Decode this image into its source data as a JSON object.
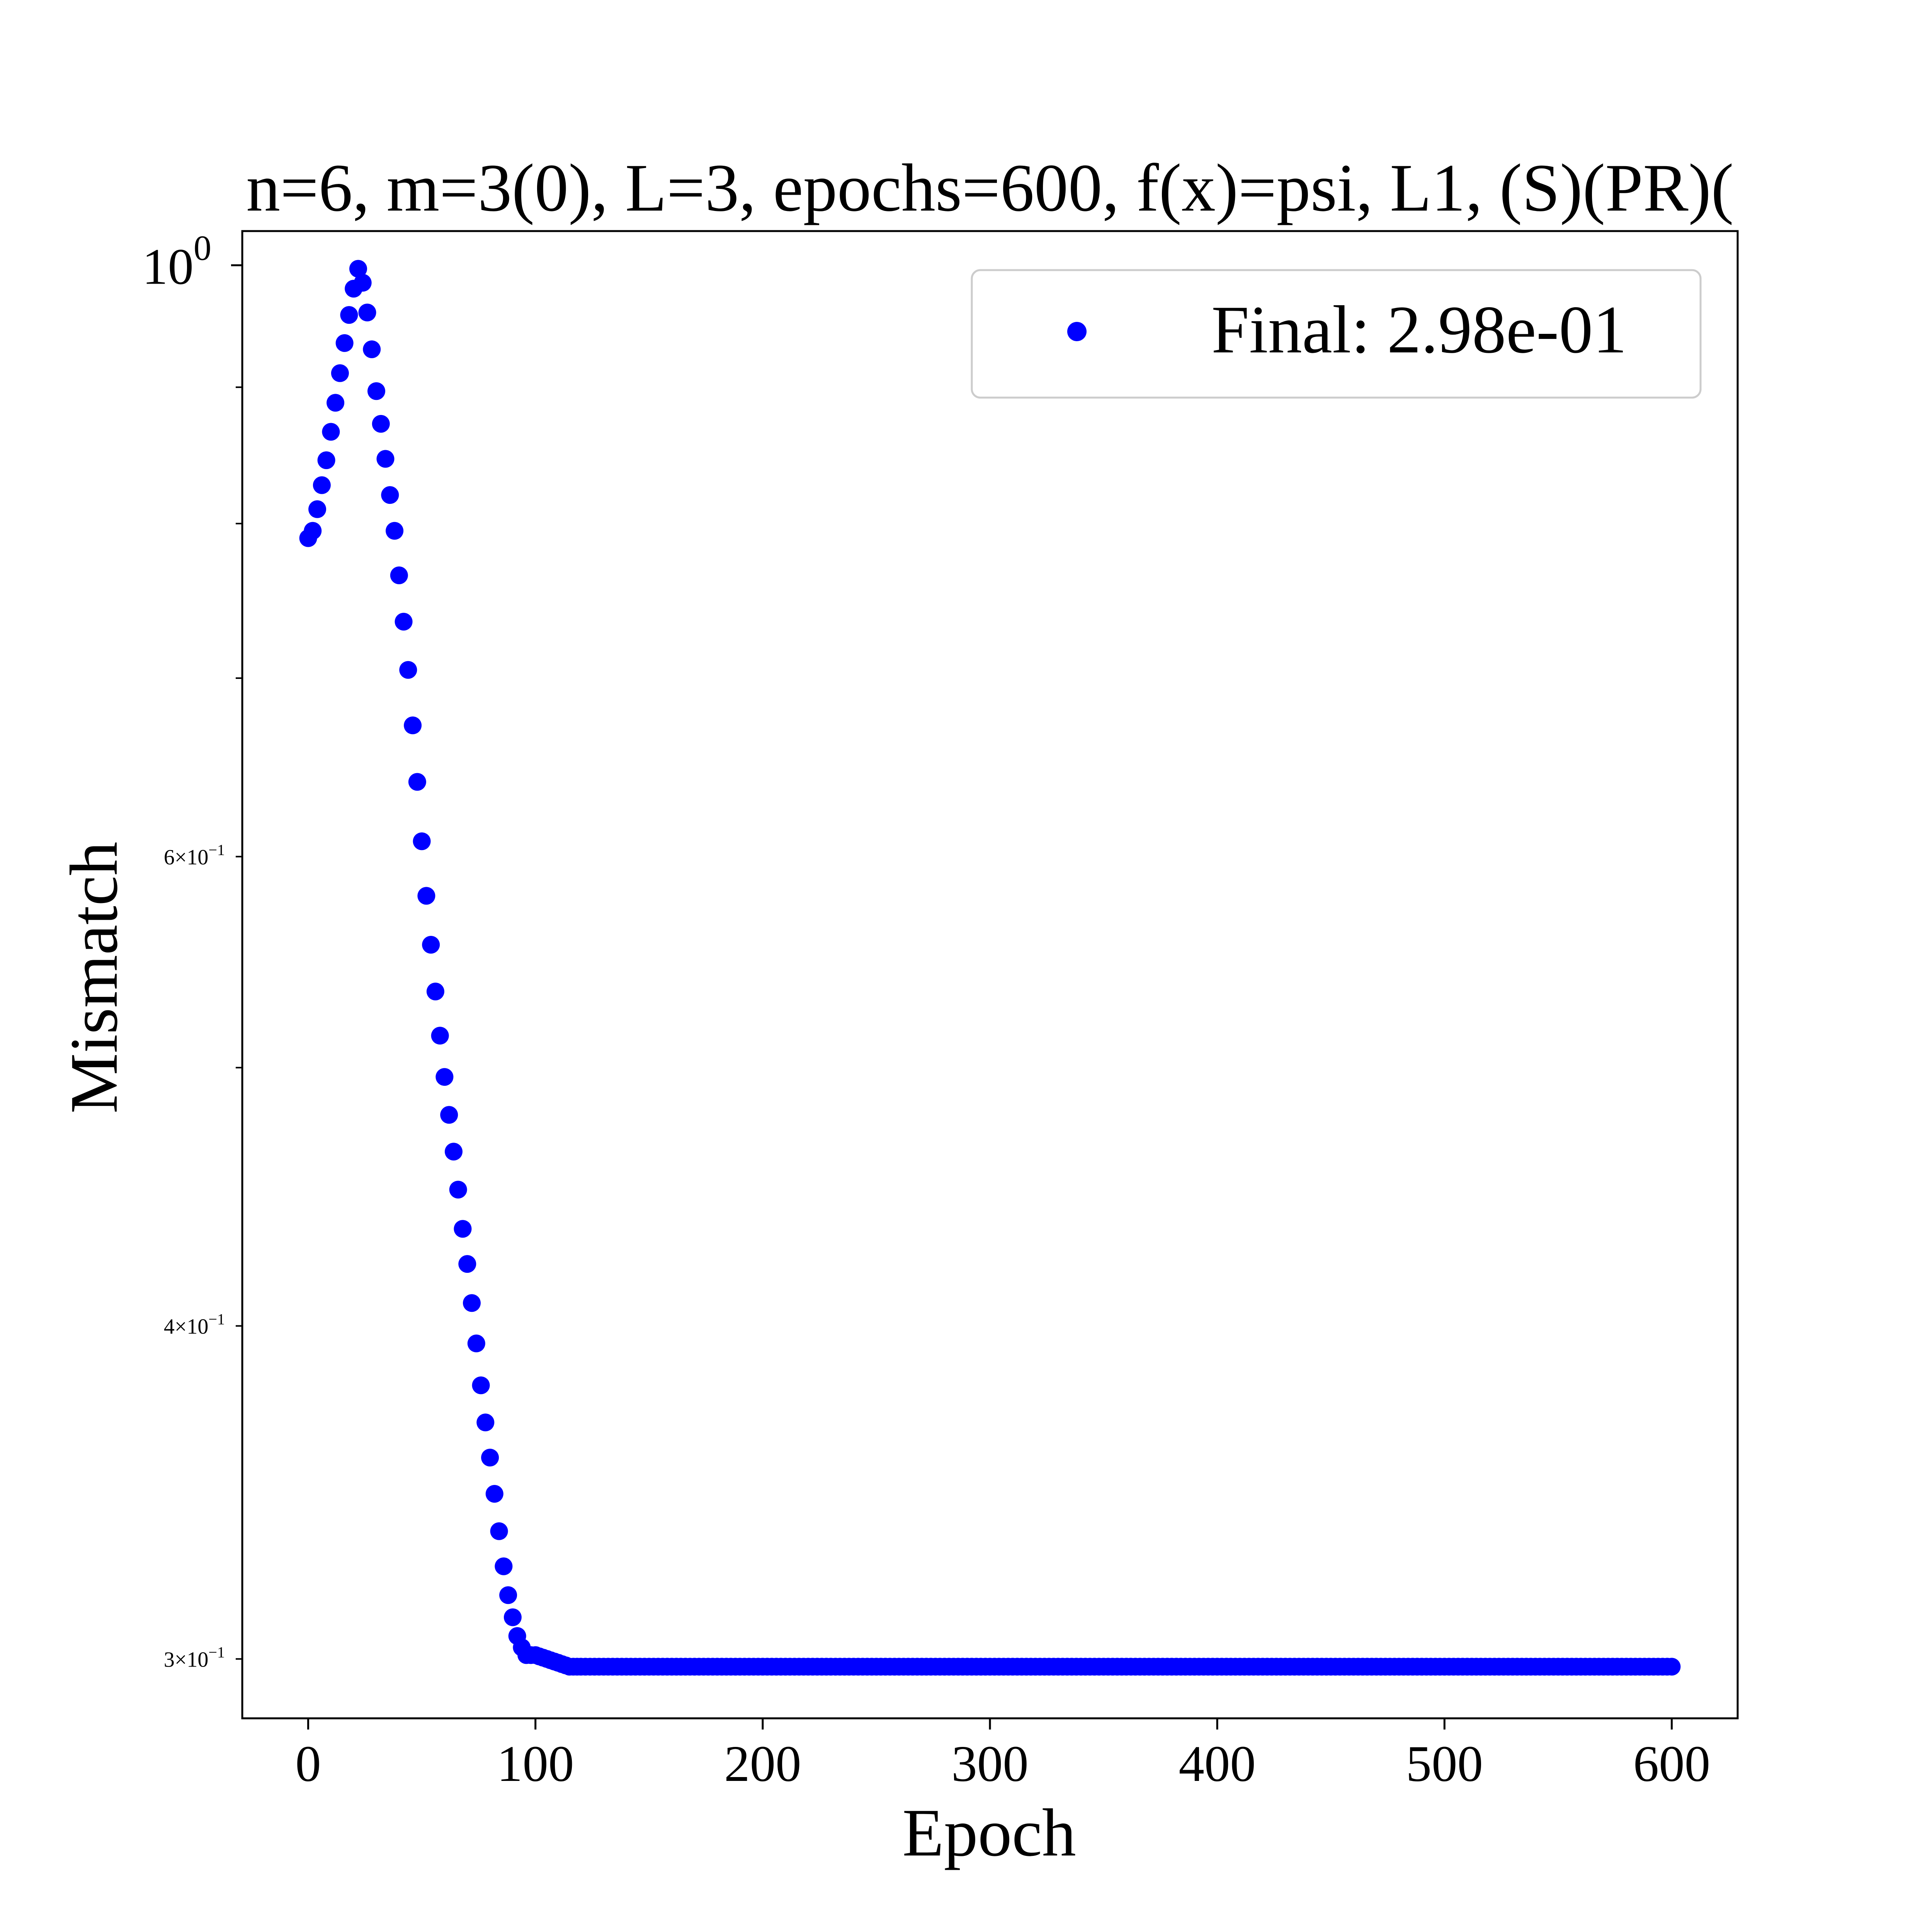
{
  "chart_data": {
    "type": "scatter",
    "title": "n=6, m=3(0), L=3, epochs=600, f(x)=psi, L1, (S)(PR)(",
    "xlabel": "Epoch",
    "ylabel": "Mismatch",
    "yscale": "log",
    "xlim": [
      -29,
      629
    ],
    "ylim": [
      0.285,
      1.03
    ],
    "grid": false,
    "legend": {
      "placement": "upper-right",
      "entries": [
        "Final: 2.98e-01"
      ]
    },
    "x_ticks": [
      {
        "value": 0,
        "label": "0"
      },
      {
        "value": 100,
        "label": "100"
      },
      {
        "value": 200,
        "label": "200"
      },
      {
        "value": 300,
        "label": "300"
      },
      {
        "value": 400,
        "label": "400"
      },
      {
        "value": 500,
        "label": "500"
      },
      {
        "value": 600,
        "label": "600"
      }
    ],
    "y_ticks_major": [
      {
        "value": 1.0,
        "base": "10",
        "exp": "0"
      }
    ],
    "y_ticks_minor": [
      {
        "value": 0.3,
        "label": "3×10",
        "exp": "−1"
      },
      {
        "value": 0.4,
        "label": "4×10",
        "exp": "−1"
      },
      {
        "value": 0.6,
        "label": "6×10",
        "exp": "−1"
      }
    ],
    "y_ticks_minor_unlabeled": [
      0.5,
      0.7,
      0.8,
      0.9
    ],
    "series": [
      {
        "name": "Final: 2.98e-01",
        "color": "#0000ff",
        "marker": "circle",
        "x": [
          0,
          2,
          4,
          6,
          8,
          10,
          12,
          14,
          16,
          18,
          20,
          22,
          24,
          26,
          28,
          30,
          32,
          34,
          36,
          38,
          40,
          42,
          44,
          46,
          48,
          50,
          52,
          54,
          56,
          58,
          60,
          62,
          64,
          66,
          68,
          70,
          72,
          74,
          76,
          78,
          80,
          82,
          84,
          86,
          88,
          90,
          92,
          94,
          96,
          98,
          100,
          105,
          110,
          115,
          120,
          130,
          140,
          150,
          160,
          170,
          180,
          190,
          200,
          210,
          220,
          230,
          240,
          250,
          260,
          270,
          280,
          290,
          300,
          310,
          320,
          330,
          340,
          350,
          360,
          370,
          380,
          390,
          400,
          410,
          420,
          430,
          440,
          450,
          460,
          470,
          480,
          490,
          500,
          510,
          520,
          530,
          540,
          550,
          560,
          570,
          580,
          590,
          600
        ],
        "y": [
          0.79,
          0.795,
          0.81,
          0.827,
          0.845,
          0.866,
          0.888,
          0.911,
          0.935,
          0.958,
          0.98,
          0.997,
          0.985,
          0.96,
          0.93,
          0.897,
          0.872,
          0.846,
          0.82,
          0.795,
          0.765,
          0.735,
          0.705,
          0.672,
          0.64,
          0.608,
          0.58,
          0.556,
          0.534,
          0.514,
          0.496,
          0.48,
          0.465,
          0.45,
          0.435,
          0.422,
          0.408,
          0.394,
          0.38,
          0.368,
          0.357,
          0.346,
          0.335,
          0.325,
          0.317,
          0.311,
          0.306,
          0.303,
          0.301,
          0.301,
          0.301,
          0.3,
          0.299,
          0.298,
          0.298,
          0.298,
          0.298,
          0.298,
          0.298,
          0.298,
          0.298,
          0.298,
          0.298,
          0.298,
          0.298,
          0.298,
          0.298,
          0.298,
          0.298,
          0.298,
          0.298,
          0.298,
          0.298,
          0.298,
          0.298,
          0.298,
          0.298,
          0.298,
          0.298,
          0.298,
          0.298,
          0.298,
          0.298,
          0.298,
          0.298,
          0.298,
          0.298,
          0.298,
          0.298,
          0.298,
          0.298,
          0.298,
          0.298,
          0.298,
          0.298,
          0.298,
          0.298,
          0.298,
          0.298,
          0.298,
          0.298,
          0.298,
          0.298
        ]
      }
    ]
  }
}
